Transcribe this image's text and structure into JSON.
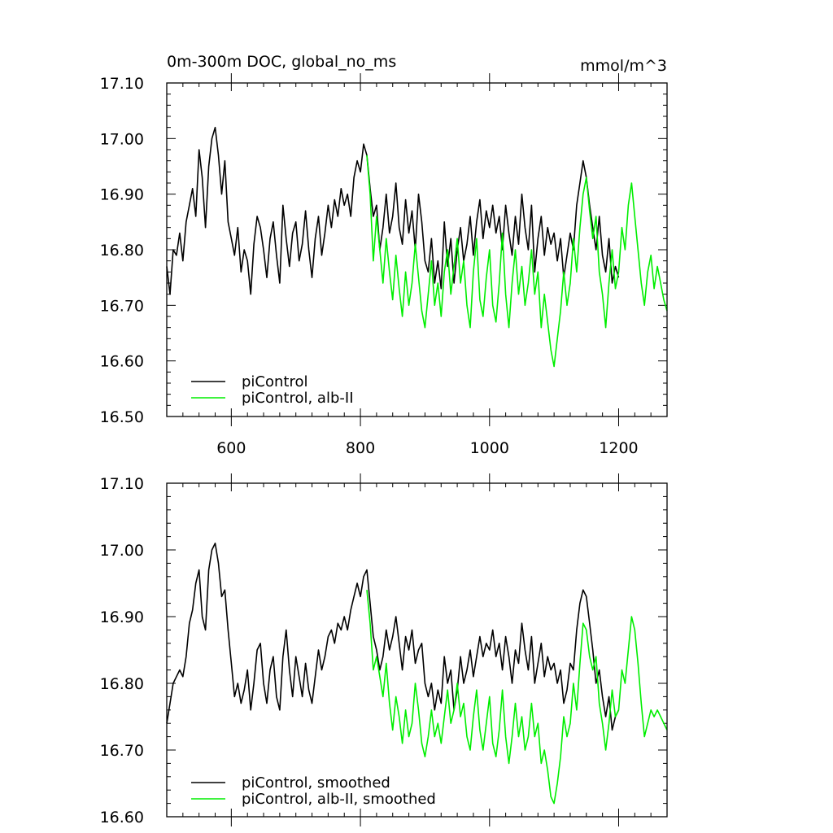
{
  "chart_data": [
    {
      "type": "line",
      "title": "0m-300m DOC, global_no_ms",
      "units": "mmol/m^3",
      "xlabel": "",
      "ylabel": "",
      "xlim": [
        500,
        1275
      ],
      "ylim": [
        16.5,
        17.1
      ],
      "xticks": [
        600,
        800,
        1000,
        1200
      ],
      "xtick_labels": [
        "600",
        "800",
        "1000",
        "1200"
      ],
      "yticks": [
        16.5,
        16.6,
        16.7,
        16.8,
        16.9,
        17.0,
        17.1
      ],
      "ytick_labels": [
        "16.50",
        "16.60",
        "16.70",
        "16.80",
        "16.90",
        "17.00",
        "17.10"
      ],
      "grid": false,
      "legend_position": "bottom-left",
      "series": [
        {
          "name": "piControl",
          "color": "#000000",
          "x": [
            500,
            505,
            510,
            515,
            520,
            525,
            530,
            535,
            540,
            545,
            550,
            555,
            560,
            565,
            570,
            575,
            580,
            585,
            590,
            595,
            600,
            605,
            610,
            615,
            620,
            625,
            630,
            635,
            640,
            645,
            650,
            655,
            660,
            665,
            670,
            675,
            680,
            685,
            690,
            695,
            700,
            705,
            710,
            715,
            720,
            725,
            730,
            735,
            740,
            745,
            750,
            755,
            760,
            765,
            770,
            775,
            780,
            785,
            790,
            795,
            800,
            805,
            810,
            815,
            820,
            825,
            830,
            835,
            840,
            845,
            850,
            855,
            860,
            865,
            870,
            875,
            880,
            885,
            890,
            895,
            900,
            905,
            910,
            915,
            920,
            925,
            930,
            935,
            940,
            945,
            950,
            955,
            960,
            965,
            970,
            975,
            980,
            985,
            990,
            995,
            1000,
            1005,
            1010,
            1015,
            1020,
            1025,
            1030,
            1035,
            1040,
            1045,
            1050,
            1055,
            1060,
            1065,
            1070,
            1075,
            1080,
            1085,
            1090,
            1095,
            1100,
            1105,
            1110,
            1115,
            1120,
            1125,
            1130,
            1135,
            1140,
            1145,
            1150,
            1155,
            1160,
            1165,
            1170,
            1175,
            1180,
            1185,
            1190,
            1195,
            1200
          ],
          "y": [
            16.77,
            16.72,
            16.8,
            16.79,
            16.83,
            16.78,
            16.85,
            16.88,
            16.91,
            16.86,
            16.98,
            16.93,
            16.84,
            16.95,
            17.0,
            17.02,
            16.97,
            16.9,
            16.96,
            16.85,
            16.82,
            16.79,
            16.84,
            16.76,
            16.8,
            16.78,
            16.72,
            16.81,
            16.86,
            16.84,
            16.8,
            16.75,
            16.82,
            16.85,
            16.79,
            16.74,
            16.88,
            16.82,
            16.77,
            16.83,
            16.85,
            16.78,
            16.81,
            16.87,
            16.8,
            16.75,
            16.82,
            16.86,
            16.79,
            16.83,
            16.88,
            16.84,
            16.89,
            16.86,
            16.91,
            16.88,
            16.9,
            16.86,
            16.93,
            16.96,
            16.94,
            16.99,
            16.97,
            16.91,
            16.86,
            16.88,
            16.8,
            16.84,
            16.9,
            16.83,
            16.86,
            16.92,
            16.84,
            16.81,
            16.89,
            16.83,
            16.87,
            16.8,
            16.9,
            16.85,
            16.78,
            16.76,
            16.82,
            16.74,
            16.78,
            16.73,
            16.85,
            16.77,
            16.82,
            16.74,
            16.8,
            16.84,
            16.78,
            16.81,
            16.86,
            16.79,
            16.85,
            16.89,
            16.82,
            16.87,
            16.84,
            16.88,
            16.83,
            16.86,
            16.8,
            16.88,
            16.83,
            16.79,
            16.86,
            16.81,
            16.9,
            16.84,
            16.8,
            16.88,
            16.76,
            16.82,
            16.86,
            16.79,
            16.84,
            16.81,
            16.83,
            16.78,
            16.82,
            16.75,
            16.79,
            16.83,
            16.8,
            16.88,
            16.92,
            16.96,
            16.93,
            16.88,
            16.84,
            16.8,
            16.86,
            16.79,
            16.76,
            16.82,
            16.74,
            16.77,
            16.75
          ]
        },
        {
          "name": "piControl, alb-II",
          "color": "#00ee00",
          "x": [
            810,
            815,
            820,
            825,
            830,
            835,
            840,
            845,
            850,
            855,
            860,
            865,
            870,
            875,
            880,
            885,
            890,
            895,
            900,
            905,
            910,
            915,
            920,
            925,
            930,
            935,
            940,
            945,
            950,
            955,
            960,
            965,
            970,
            975,
            980,
            985,
            990,
            995,
            1000,
            1005,
            1010,
            1015,
            1020,
            1025,
            1030,
            1035,
            1040,
            1045,
            1050,
            1055,
            1060,
            1065,
            1070,
            1075,
            1080,
            1085,
            1090,
            1095,
            1100,
            1105,
            1110,
            1115,
            1120,
            1125,
            1130,
            1135,
            1140,
            1145,
            1150,
            1155,
            1160,
            1165,
            1170,
            1175,
            1180,
            1185,
            1190,
            1195,
            1200,
            1205,
            1210,
            1215,
            1220,
            1225,
            1230,
            1235,
            1240,
            1245,
            1250,
            1255,
            1260,
            1265,
            1270,
            1275
          ],
          "y": [
            16.97,
            16.9,
            16.78,
            16.86,
            16.8,
            16.74,
            16.82,
            16.76,
            16.71,
            16.79,
            16.73,
            16.68,
            16.76,
            16.7,
            16.74,
            16.81,
            16.75,
            16.69,
            16.66,
            16.72,
            16.78,
            16.7,
            16.74,
            16.68,
            16.76,
            16.8,
            16.72,
            16.77,
            16.82,
            16.74,
            16.78,
            16.7,
            16.66,
            16.76,
            16.82,
            16.71,
            16.68,
            16.75,
            16.8,
            16.7,
            16.67,
            16.74,
            16.83,
            16.72,
            16.66,
            16.74,
            16.8,
            16.72,
            16.77,
            16.7,
            16.74,
            16.8,
            16.72,
            16.76,
            16.66,
            16.72,
            16.67,
            16.62,
            16.59,
            16.64,
            16.69,
            16.76,
            16.7,
            16.74,
            16.82,
            16.76,
            16.84,
            16.9,
            16.93,
            16.87,
            16.82,
            16.86,
            16.76,
            16.72,
            16.66,
            16.74,
            16.8,
            16.73,
            16.76,
            16.84,
            16.8,
            16.88,
            16.92,
            16.86,
            16.8,
            16.74,
            16.7,
            16.76,
            16.79,
            16.73,
            16.77,
            16.74,
            16.71,
            16.69
          ]
        }
      ]
    },
    {
      "type": "line",
      "title": "",
      "xlabel": "",
      "ylabel": "",
      "xlim": [
        500,
        1275
      ],
      "ylim": [
        16.6,
        17.1
      ],
      "xticks": [
        600,
        800,
        1000,
        1200
      ],
      "xtick_labels": [],
      "yticks": [
        16.6,
        16.7,
        16.8,
        16.9,
        17.0,
        17.1
      ],
      "ytick_labels": [
        "16.60",
        "16.70",
        "16.80",
        "16.90",
        "17.00",
        "17.10"
      ],
      "grid": false,
      "legend_position": "bottom-left",
      "series": [
        {
          "name": "piControl, smoothed",
          "color": "#000000",
          "x": [
            500,
            505,
            510,
            515,
            520,
            525,
            530,
            535,
            540,
            545,
            550,
            555,
            560,
            565,
            570,
            575,
            580,
            585,
            590,
            595,
            600,
            605,
            610,
            615,
            620,
            625,
            630,
            635,
            640,
            645,
            650,
            655,
            660,
            665,
            670,
            675,
            680,
            685,
            690,
            695,
            700,
            705,
            710,
            715,
            720,
            725,
            730,
            735,
            740,
            745,
            750,
            755,
            760,
            765,
            770,
            775,
            780,
            785,
            790,
            795,
            800,
            805,
            810,
            815,
            820,
            825,
            830,
            835,
            840,
            845,
            850,
            855,
            860,
            865,
            870,
            875,
            880,
            885,
            890,
            895,
            900,
            905,
            910,
            915,
            920,
            925,
            930,
            935,
            940,
            945,
            950,
            955,
            960,
            965,
            970,
            975,
            980,
            985,
            990,
            995,
            1000,
            1005,
            1010,
            1015,
            1020,
            1025,
            1030,
            1035,
            1040,
            1045,
            1050,
            1055,
            1060,
            1065,
            1070,
            1075,
            1080,
            1085,
            1090,
            1095,
            1100,
            1105,
            1110,
            1115,
            1120,
            1125,
            1130,
            1135,
            1140,
            1145,
            1150,
            1155,
            1160,
            1165,
            1170,
            1175,
            1180,
            1185,
            1190,
            1195,
            1200
          ],
          "y": [
            16.74,
            16.77,
            16.8,
            16.81,
            16.82,
            16.81,
            16.84,
            16.89,
            16.91,
            16.95,
            16.97,
            16.9,
            16.88,
            16.97,
            17.0,
            17.01,
            16.98,
            16.93,
            16.94,
            16.88,
            16.83,
            16.78,
            16.8,
            16.77,
            16.79,
            16.82,
            16.76,
            16.8,
            16.85,
            16.86,
            16.8,
            16.77,
            16.82,
            16.84,
            16.78,
            16.76,
            16.84,
            16.88,
            16.82,
            16.78,
            16.84,
            16.81,
            16.78,
            16.83,
            16.79,
            16.77,
            16.81,
            16.85,
            16.82,
            16.84,
            16.87,
            16.88,
            16.86,
            16.89,
            16.88,
            16.9,
            16.88,
            16.91,
            16.93,
            16.95,
            16.93,
            16.96,
            16.97,
            16.92,
            16.87,
            16.85,
            16.82,
            16.84,
            16.88,
            16.85,
            16.87,
            16.9,
            16.86,
            16.82,
            16.87,
            16.85,
            16.88,
            16.83,
            16.85,
            16.86,
            16.8,
            16.78,
            16.8,
            16.76,
            16.79,
            16.77,
            16.84,
            16.8,
            16.82,
            16.76,
            16.79,
            16.84,
            16.8,
            16.82,
            16.85,
            16.81,
            16.84,
            16.87,
            16.84,
            16.86,
            16.85,
            16.88,
            16.84,
            16.86,
            16.82,
            16.87,
            16.84,
            16.8,
            16.85,
            16.83,
            16.89,
            16.85,
            16.82,
            16.87,
            16.8,
            16.83,
            16.86,
            16.81,
            16.84,
            16.82,
            16.83,
            16.8,
            16.82,
            16.77,
            16.79,
            16.83,
            16.82,
            16.88,
            16.92,
            16.94,
            16.93,
            16.89,
            16.85,
            16.8,
            16.82,
            16.78,
            16.75,
            16.78,
            16.73,
            16.75,
            16.76
          ]
        },
        {
          "name": "piControl, alb-II, smoothed",
          "color": "#00ee00",
          "x": [
            810,
            815,
            820,
            825,
            830,
            835,
            840,
            845,
            850,
            855,
            860,
            865,
            870,
            875,
            880,
            885,
            890,
            895,
            900,
            905,
            910,
            915,
            920,
            925,
            930,
            935,
            940,
            945,
            950,
            955,
            960,
            965,
            970,
            975,
            980,
            985,
            990,
            995,
            1000,
            1005,
            1010,
            1015,
            1020,
            1025,
            1030,
            1035,
            1040,
            1045,
            1050,
            1055,
            1060,
            1065,
            1070,
            1075,
            1080,
            1085,
            1090,
            1095,
            1100,
            1105,
            1110,
            1115,
            1120,
            1125,
            1130,
            1135,
            1140,
            1145,
            1150,
            1155,
            1160,
            1165,
            1170,
            1175,
            1180,
            1185,
            1190,
            1195,
            1200,
            1205,
            1210,
            1215,
            1220,
            1225,
            1230,
            1235,
            1240,
            1245,
            1250,
            1255,
            1260,
            1265,
            1270,
            1275
          ],
          "y": [
            16.94,
            16.89,
            16.82,
            16.84,
            16.81,
            16.78,
            16.83,
            16.77,
            16.73,
            16.78,
            16.75,
            16.71,
            16.76,
            16.72,
            16.74,
            16.8,
            16.76,
            16.71,
            16.69,
            16.72,
            16.76,
            16.72,
            16.74,
            16.71,
            16.75,
            16.79,
            16.74,
            16.76,
            16.8,
            16.75,
            16.77,
            16.72,
            16.7,
            16.75,
            16.79,
            16.73,
            16.7,
            16.74,
            16.78,
            16.71,
            16.69,
            16.73,
            16.79,
            16.72,
            16.68,
            16.72,
            16.77,
            16.72,
            16.75,
            16.7,
            16.72,
            16.77,
            16.72,
            16.74,
            16.68,
            16.7,
            16.67,
            16.63,
            16.62,
            16.65,
            16.69,
            16.75,
            16.72,
            16.74,
            16.8,
            16.76,
            16.83,
            16.89,
            16.88,
            16.84,
            16.82,
            16.84,
            16.77,
            16.74,
            16.7,
            16.74,
            16.79,
            16.75,
            16.76,
            16.82,
            16.8,
            16.85,
            16.9,
            16.88,
            16.83,
            16.77,
            16.72,
            16.74,
            16.76,
            16.75,
            16.76,
            16.75,
            16.74,
            16.73
          ]
        }
      ]
    }
  ]
}
